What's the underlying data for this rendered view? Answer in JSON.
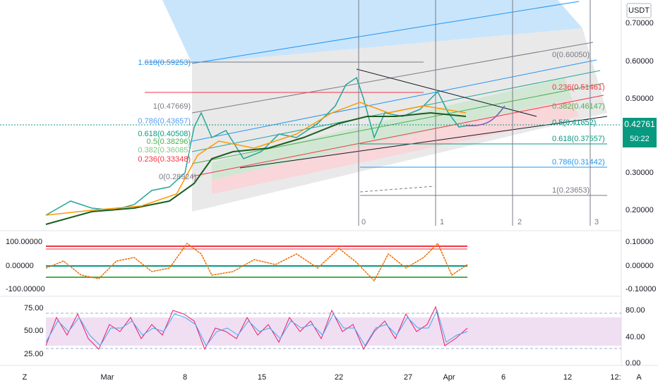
{
  "price_axis": {
    "unit": "USDT",
    "labels": [
      "0.70000",
      "0.60000",
      "0.50000",
      "0.30000",
      "0.20000"
    ],
    "last_price": "0.42761",
    "countdown": "50:22"
  },
  "fib_left": [
    "1.618(0.59253)",
    "1(0.47669)",
    "0.786(0.43657)",
    "0.618(0.40508)",
    "0.5(0.38296)",
    "0.382(0.36085)",
    "0.236(0.33348)",
    "0(0.28924)"
  ],
  "fib_right": [
    "0(0.60050)",
    "0.236(0.51461)",
    "0.382(0.46147)",
    "0.5(0.41852)",
    "0.618(0.37557)",
    "0.786(0.31442)",
    "1(0.23653)"
  ],
  "time_marks": [
    "0",
    "1",
    "2",
    "3"
  ],
  "osc_left": [
    "100.00000",
    "0.00000",
    "-100.00000"
  ],
  "osc_right": [
    "0.10000",
    "0.00000",
    "-0.10000"
  ],
  "rsi_left": [
    "75.00",
    "50.00",
    "25.00"
  ],
  "rsi_right": [
    "80.00",
    "40.00",
    "0.00"
  ],
  "time_axis": [
    "Mar",
    "8",
    "15",
    "22",
    "27",
    "Apr",
    "6",
    "12",
    "12:"
  ],
  "corner": [
    "Z",
    "A"
  ]
}
